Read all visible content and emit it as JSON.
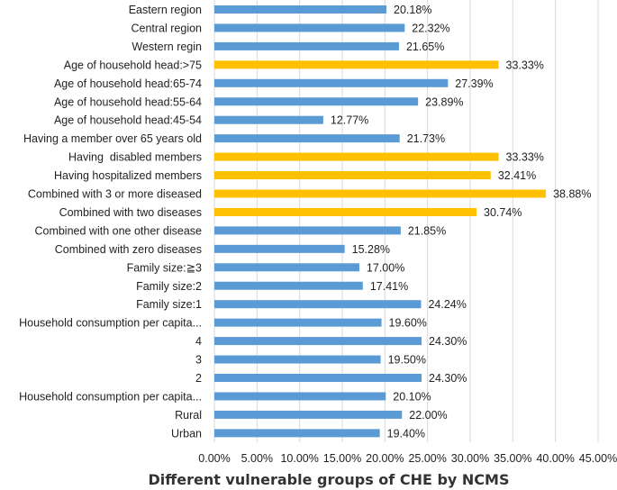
{
  "chart_data": {
    "type": "bar",
    "orientation": "horizontal",
    "title": "",
    "xlabel": "Different vulnerable groups of CHE by NCMS",
    "ylabel": "",
    "xlim": [
      0,
      45
    ],
    "xticks": [
      "0.00%",
      "5.00%",
      "10.00%",
      "15.00%",
      "20.00%",
      "25.00%",
      "30.00%",
      "35.00%",
      "40.00%",
      "45.00%"
    ],
    "grid": true,
    "colors": {
      "default": "#5b9bd5",
      "highlight": "#ffc000"
    },
    "bars": [
      {
        "category": "Eastern region",
        "value": 20.18,
        "label": "20.18%",
        "highlight": false
      },
      {
        "category": "Central region",
        "value": 22.32,
        "label": "22.32%",
        "highlight": false
      },
      {
        "category": "Western regin",
        "value": 21.65,
        "label": "21.65%",
        "highlight": false
      },
      {
        "category": "Age of household head:>75",
        "value": 33.33,
        "label": "33.33%",
        "highlight": true
      },
      {
        "category": "Age of household head:65-74",
        "value": 27.39,
        "label": "27.39%",
        "highlight": false
      },
      {
        "category": "Age of household head:55-64",
        "value": 23.89,
        "label": "23.89%",
        "highlight": false
      },
      {
        "category": "Age of household head:45-54",
        "value": 12.77,
        "label": "12.77%",
        "highlight": false
      },
      {
        "category": "Having a member over 65 years old",
        "value": 21.73,
        "label": "21.73%",
        "highlight": false
      },
      {
        "category": "Having  disabled members",
        "value": 33.33,
        "label": "33.33%",
        "highlight": true
      },
      {
        "category": "Having hospitalized members",
        "value": 32.41,
        "label": "32.41%",
        "highlight": true
      },
      {
        "category": "Combined with 3 or more diseased",
        "value": 38.88,
        "label": "38.88%",
        "highlight": true
      },
      {
        "category": "Combined with two diseases",
        "value": 30.74,
        "label": "30.74%",
        "highlight": true
      },
      {
        "category": "Combined with one other disease",
        "value": 21.85,
        "label": "21.85%",
        "highlight": false
      },
      {
        "category": "Combined with zero diseases",
        "value": 15.28,
        "label": "15.28%",
        "highlight": false
      },
      {
        "category": "Family size:≧3",
        "value": 17.0,
        "label": "17.00%",
        "highlight": false
      },
      {
        "category": "Family size:2",
        "value": 17.41,
        "label": "17.41%",
        "highlight": false
      },
      {
        "category": "Family size:1",
        "value": 24.24,
        "label": "24.24%",
        "highlight": false
      },
      {
        "category": "Household consumption per capita...",
        "value": 19.6,
        "label": "19.60%",
        "highlight": false
      },
      {
        "category": "4",
        "value": 24.3,
        "label": "24.30%",
        "highlight": false
      },
      {
        "category": "3",
        "value": 19.5,
        "label": "19.50%",
        "highlight": false
      },
      {
        "category": "2",
        "value": 24.3,
        "label": "24.30%",
        "highlight": false
      },
      {
        "category": "Household consumption per capita...",
        "value": 20.1,
        "label": "20.10%",
        "highlight": false
      },
      {
        "category": "Rural",
        "value": 22.0,
        "label": "22.00%",
        "highlight": false
      },
      {
        "category": "Urban",
        "value": 19.4,
        "label": "19.40%",
        "highlight": false
      }
    ]
  }
}
